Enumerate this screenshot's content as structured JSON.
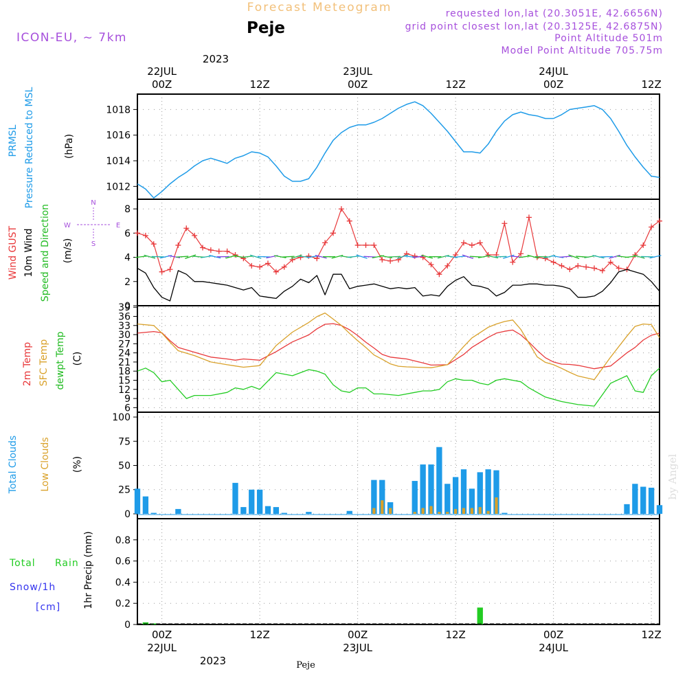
{
  "header": {
    "title": "Forecast Meteogram",
    "model": "ICON-EU, ~ 7km",
    "location": "Peje",
    "requested": "requested lon,lat (20.3051E, 42.6656N)",
    "grid": "grid point closest lon,lat (20.3125E, 42.6875N)",
    "point_alt": "Point Altitude 501m",
    "model_alt": "Model Point Altitude 705.75m",
    "credit": "by Angel",
    "footer_location": "Peje"
  },
  "colors": {
    "pressure": "#1e9be8",
    "gust": "#e8383a",
    "wind10": "#000000",
    "direction": "#22bb22",
    "t2m": "#e8383a",
    "sfc": "#d9a12a",
    "dewpt": "#22cc22",
    "total_clouds": "#1e9be8",
    "low_clouds": "#d9a12a",
    "rain": "#22cc22",
    "snow": "#3333ee",
    "purple": "#a64fdc",
    "title_orange": "#f2c07a"
  },
  "axis_top": {
    "year": "2023",
    "labels": [
      {
        "top": "22JUL",
        "bottom": "00Z"
      },
      {
        "top": "",
        "bottom": "12Z"
      },
      {
        "top": "23JUL",
        "bottom": "00Z"
      },
      {
        "top": "",
        "bottom": "12Z"
      },
      {
        "top": "24JUL",
        "bottom": "00Z"
      },
      {
        "top": "",
        "bottom": "12Z"
      }
    ]
  },
  "axis_bottom": {
    "labels": [
      "00Z",
      "12Z",
      "00Z",
      "12Z",
      "00Z",
      "12Z"
    ],
    "dates": [
      "22JUL",
      "23JUL",
      "24JUL"
    ],
    "year": "2023"
  },
  "panel_labels": {
    "pressure": {
      "l1": "PRMSL",
      "l2": "Pressure Reduced to MSL",
      "unit": "(hPa)"
    },
    "wind": {
      "l1": "Wind GUST",
      "l2": "10m Wind",
      "l3": "Speed and Direction",
      "unit": "(m/s)",
      "compass_n": "N",
      "compass_s": "S",
      "compass_w": "W",
      "compass_e": "E"
    },
    "temp": {
      "l1": "2m Temp",
      "l2": "SFC Temp",
      "l3": "dewpt Temp",
      "unit": "(C)"
    },
    "clouds": {
      "l1": "Total Clouds",
      "l2": "Low Clouds",
      "unit": "(%)"
    },
    "precip": {
      "l1": "Total",
      "l1b": "Rain",
      "l2": "Snow/1h",
      "l3": "[cm]",
      "unit": "1hr Precip (mm)"
    }
  },
  "chart_data": [
    {
      "type": "line",
      "x_unit": "hours from 2023-07-21 21Z",
      "xlim": [
        0,
        64
      ],
      "ylim": [
        1011,
        1019.2
      ],
      "yticks": [
        "1012",
        "1014",
        "1016",
        "1018"
      ],
      "series": [
        {
          "name": "PRMSL",
          "x": [
            0,
            1,
            2,
            3,
            4,
            5,
            6,
            7,
            8,
            9,
            10,
            11,
            12,
            13,
            14,
            15,
            16,
            17,
            18,
            19,
            20,
            21,
            22,
            23,
            24,
            25,
            26,
            27,
            28,
            29,
            30,
            31,
            32,
            33,
            34,
            35,
            36,
            37,
            38,
            39,
            40,
            41,
            42,
            43,
            44,
            45,
            46,
            47,
            48,
            49,
            50,
            51,
            52,
            53,
            54,
            55,
            56,
            57,
            58,
            59,
            60,
            61,
            62,
            63,
            64
          ],
          "values": [
            1012.2,
            1011.8,
            1011.1,
            1011.6,
            1012.2,
            1012.7,
            1013.1,
            1013.6,
            1014.0,
            1014.2,
            1014.0,
            1013.8,
            1014.2,
            1014.4,
            1014.7,
            1014.6,
            1014.3,
            1013.6,
            1012.8,
            1012.4,
            1012.4,
            1012.6,
            1013.5,
            1014.6,
            1015.6,
            1016.2,
            1016.6,
            1016.8,
            1016.8,
            1017.0,
            1017.3,
            1017.7,
            1018.1,
            1018.4,
            1018.6,
            1018.3,
            1017.7,
            1017.0,
            1016.3,
            1015.5,
            1014.7,
            1014.7,
            1014.6,
            1015.3,
            1016.3,
            1017.1,
            1017.6,
            1017.8,
            1017.6,
            1017.5,
            1017.3,
            1017.3,
            1017.6,
            1018.0,
            1018.1,
            1018.2,
            1018.3,
            1018.0,
            1017.3,
            1016.3,
            1015.2,
            1014.3,
            1013.5,
            1012.8,
            1012.7
          ]
        }
      ]
    },
    {
      "type": "line",
      "x_unit": "hours from 2023-07-21 21Z",
      "xlim": [
        0,
        64
      ],
      "ylim": [
        0,
        8.8
      ],
      "yticks": [
        "0",
        "2",
        "4",
        "6",
        "8"
      ],
      "series": [
        {
          "name": "Wind GUST",
          "x": [
            0,
            1,
            2,
            3,
            4,
            5,
            6,
            7,
            8,
            9,
            10,
            11,
            12,
            13,
            14,
            15,
            16,
            17,
            18,
            19,
            20,
            21,
            22,
            23,
            24,
            25,
            26,
            27,
            28,
            29,
            30,
            31,
            32,
            33,
            34,
            35,
            36,
            37,
            38,
            39,
            40,
            41,
            42,
            43,
            44,
            45,
            46,
            47,
            48,
            49,
            50,
            51,
            52,
            53,
            54,
            55,
            56,
            57,
            58,
            59,
            60,
            61,
            62,
            63,
            64
          ],
          "values": [
            6.0,
            5.8,
            5.1,
            2.8,
            3.0,
            5.0,
            6.4,
            5.8,
            4.8,
            4.6,
            4.5,
            4.5,
            4.2,
            3.9,
            3.3,
            3.2,
            3.5,
            2.8,
            3.2,
            3.8,
            4.0,
            4.1,
            3.9,
            5.2,
            6.0,
            8.0,
            7.0,
            5.0,
            5.0,
            5.0,
            3.8,
            3.7,
            3.8,
            4.3,
            4.1,
            4.0,
            3.4,
            2.6,
            3.3,
            4.2,
            5.2,
            5.0,
            5.2,
            4.2,
            4.2,
            6.8,
            3.6,
            4.3,
            7.3,
            4.0,
            3.9,
            3.6,
            3.3,
            3.0,
            3.3,
            3.2,
            3.1,
            2.9,
            3.6,
            3.1,
            3.0,
            4.2,
            5.0,
            6.5,
            7.0
          ]
        },
        {
          "name": "10m Wind",
          "x": [
            0,
            1,
            2,
            3,
            4,
            5,
            6,
            7,
            8,
            9,
            10,
            11,
            12,
            13,
            14,
            15,
            16,
            17,
            18,
            19,
            20,
            21,
            22,
            23,
            24,
            25,
            26,
            27,
            28,
            29,
            30,
            31,
            32,
            33,
            34,
            35,
            36,
            37,
            38,
            39,
            40,
            41,
            42,
            43,
            44,
            45,
            46,
            47,
            48,
            49,
            50,
            51,
            52,
            53,
            54,
            55,
            56,
            57,
            58,
            59,
            60,
            61,
            62,
            63,
            64
          ],
          "values": [
            3.1,
            2.7,
            1.5,
            0.7,
            0.4,
            2.9,
            2.6,
            2.0,
            2.0,
            1.9,
            1.8,
            1.7,
            1.5,
            1.3,
            1.5,
            0.8,
            0.7,
            0.6,
            1.2,
            1.6,
            2.2,
            1.9,
            2.5,
            0.9,
            2.6,
            2.6,
            1.4,
            1.6,
            1.7,
            1.8,
            1.6,
            1.4,
            1.5,
            1.4,
            1.5,
            0.8,
            0.9,
            0.8,
            1.6,
            2.1,
            2.4,
            1.7,
            1.6,
            1.4,
            0.8,
            1.1,
            1.7,
            1.7,
            1.8,
            1.8,
            1.7,
            1.7,
            1.6,
            1.4,
            0.7,
            0.7,
            0.8,
            1.2,
            1.9,
            2.8,
            3.0,
            2.8,
            2.6,
            2.0,
            1.2
          ]
        }
      ]
    },
    {
      "type": "line",
      "x_unit": "hours from 2023-07-21 21Z",
      "xlim": [
        0,
        64
      ],
      "ylim": [
        4.5,
        39.5
      ],
      "yticks": [
        "6",
        "9",
        "12",
        "15",
        "18",
        "21",
        "24",
        "27",
        "30",
        "33",
        "36",
        "39"
      ],
      "series": [
        {
          "name": "2m Temp",
          "x": [
            0,
            2,
            3,
            4,
            5,
            7,
            9,
            11,
            12,
            13,
            15,
            17,
            19,
            21,
            22,
            23,
            24,
            25,
            26,
            27,
            28,
            29,
            30,
            31,
            32,
            33,
            35,
            36,
            38,
            40,
            41,
            43,
            44,
            45,
            46,
            47,
            48,
            49,
            50,
            51,
            52,
            53,
            54,
            56,
            58,
            60,
            61,
            62,
            63,
            64
          ],
          "values": [
            30.5,
            31,
            30.6,
            28,
            25.8,
            24.2,
            22.6,
            22,
            21.6,
            22,
            21.6,
            24.4,
            27.6,
            29.9,
            31.9,
            33.4,
            33.6,
            33,
            31.6,
            29.7,
            27.5,
            25.6,
            23.5,
            22.6,
            22.3,
            22,
            20.7,
            20,
            20.1,
            23.5,
            25.8,
            29.1,
            30.5,
            31.1,
            31.5,
            29.9,
            27.5,
            24.8,
            22.4,
            21,
            20.3,
            20.2,
            19.9,
            18.8,
            19.7,
            24,
            25.8,
            28.2,
            29.8,
            30.5
          ]
        },
        {
          "name": "SFC Temp",
          "x": [
            0,
            2,
            3,
            4,
            5,
            7,
            9,
            11,
            12,
            13,
            15,
            17,
            19,
            21,
            22,
            23,
            24,
            25,
            26,
            27,
            28,
            29,
            30,
            31,
            32,
            33,
            35,
            36,
            38,
            40,
            41,
            43,
            44,
            45,
            46,
            47,
            48,
            49,
            50,
            51,
            52,
            53,
            54,
            56,
            58,
            60,
            61,
            62,
            63,
            64
          ],
          "values": [
            33.5,
            33,
            30.5,
            27.5,
            24.7,
            23.1,
            21.0,
            20.1,
            19.7,
            19.3,
            19.8,
            26.4,
            30.8,
            34.0,
            35.9,
            37.1,
            35.1,
            33.0,
            30.4,
            28.0,
            25.8,
            23.3,
            21.9,
            20.4,
            19.6,
            19.4,
            19.2,
            19.1,
            20.1,
            26.1,
            28.9,
            32.4,
            33.5,
            34.3,
            34.8,
            31.7,
            27.2,
            22.7,
            20.9,
            20.1,
            18.9,
            17.6,
            16.4,
            15.2,
            22.6,
            29.5,
            32.7,
            33.5,
            33.3,
            29.0
          ]
        },
        {
          "name": "dewpt Temp",
          "x": [
            0,
            1,
            2,
            3,
            4,
            5,
            6,
            7,
            9,
            11,
            12,
            13,
            14,
            15,
            17,
            19,
            21,
            22,
            23,
            24,
            25,
            26,
            27,
            28,
            29,
            30,
            32,
            34,
            35,
            36,
            37,
            38,
            39,
            40,
            41,
            42,
            43,
            44,
            45,
            46,
            47,
            48,
            50,
            52,
            54,
            56,
            58,
            60,
            61,
            62,
            63,
            64
          ],
          "values": [
            18.0,
            19.0,
            17.5,
            14.5,
            15.0,
            12.0,
            9.0,
            10.0,
            10.0,
            11.0,
            12.5,
            12.0,
            13.0,
            12.0,
            17.5,
            16.5,
            18.5,
            18.0,
            17.0,
            13.5,
            11.5,
            11.0,
            12.5,
            12.5,
            10.5,
            10.5,
            10.0,
            11.0,
            11.5,
            11.5,
            12.0,
            14.5,
            15.5,
            15.0,
            15.0,
            14.0,
            13.5,
            15.0,
            15.5,
            15.0,
            14.5,
            12.5,
            9.5,
            8.0,
            7.0,
            6.5,
            14.0,
            16.5,
            11.5,
            11.0,
            16.5,
            19.0
          ]
        }
      ]
    },
    {
      "type": "bar",
      "x_unit": "hours from 2023-07-21 21Z",
      "xlim": [
        0,
        64
      ],
      "ylim": [
        -5,
        105
      ],
      "yticks": [
        "0",
        "25",
        "50",
        "75",
        "100"
      ],
      "series": [
        {
          "name": "Total Clouds",
          "x": [
            0,
            1,
            2,
            5,
            12,
            13,
            14,
            15,
            16,
            17,
            18,
            21,
            26,
            29,
            30,
            31,
            34,
            35,
            36,
            37,
            38,
            39,
            40,
            41,
            42,
            43,
            44,
            45,
            60,
            61,
            62,
            63,
            64
          ],
          "values": [
            26,
            18,
            1,
            5,
            32,
            7,
            25,
            25,
            8,
            7,
            1,
            2,
            3,
            35,
            35,
            12,
            34,
            51,
            51,
            69,
            31,
            38,
            46,
            26,
            43,
            46,
            45,
            1,
            10,
            31,
            28,
            27,
            9
          ]
        },
        {
          "name": "Low Clouds",
          "x": [
            29,
            30,
            31,
            34,
            35,
            36,
            37,
            38,
            39,
            40,
            41,
            42,
            43,
            44
          ],
          "values": [
            6,
            14,
            6,
            2,
            6,
            8,
            2,
            2,
            5,
            6,
            6,
            7,
            3,
            17
          ]
        }
      ]
    },
    {
      "type": "bar",
      "x_unit": "hours from 2023-07-21 21Z",
      "xlim": [
        0,
        64
      ],
      "ylim": [
        0,
        1.0
      ],
      "yticks": [
        "0",
        "0.2",
        "0.4",
        "0.6",
        "0.8"
      ],
      "series": [
        {
          "name": "Total Rain",
          "x": [
            1,
            2,
            42
          ],
          "values": [
            0.02,
            0.01,
            0.16
          ]
        }
      ]
    }
  ]
}
